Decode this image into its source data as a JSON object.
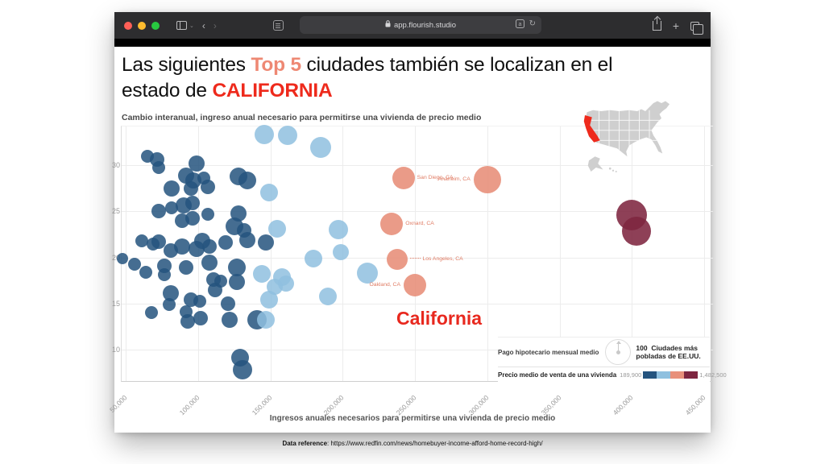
{
  "browser": {
    "url": "app.flourish.studio",
    "traffic_lights": {
      "close": "#ff5f57",
      "minimize": "#febc2e",
      "zoom": "#28c840"
    },
    "nav": {
      "back": "‹",
      "forward": "›",
      "reload": "↻",
      "plus": "+",
      "chevron": "⌄"
    }
  },
  "slide": {
    "title_parts": [
      {
        "text": "Las siguientes "
      },
      {
        "text": "Top 5",
        "class": "hl-salmon"
      },
      {
        "text": " ciudades también se localizan en el"
      },
      {
        "br": true
      },
      {
        "text": "estado de "
      },
      {
        "text": "CALIFORNIA",
        "class": "hl-red"
      }
    ],
    "caption_label": "Data reference",
    "caption_rest": ": https://www.redfin.com/news/homebuyer-income-afford-home-record-high/"
  },
  "chart_data": {
    "type": "scatter",
    "title": "Cambio interanual, ingreso anual necesario para permitirse una vivienda de precio medio",
    "xlabel": "Ingresos anuales necesarios para permitirse una vivienda de precio medio",
    "annotation": "California",
    "annotation_color": "#e8281e",
    "xlim": [
      46000,
      458000
    ],
    "ylim": [
      6.4,
      34.4
    ],
    "grid": true,
    "x_ticks": [
      50000,
      100000,
      150000,
      200000,
      250000,
      300000,
      350000,
      400000,
      450000
    ],
    "x_tick_labels": [
      "50,000",
      "100,000",
      "150,000",
      "200,000",
      "250,000",
      "300,000",
      "350,000",
      "400,000",
      "450,000"
    ],
    "y_ticks": [
      10,
      15,
      20,
      25,
      30
    ],
    "series": [
      {
        "name": "ciudades-precio-bajo",
        "color": "#24537e",
        "opacity": 0.85,
        "points": [
          [
            65000,
            31.0,
            8
          ],
          [
            72000,
            30.6,
            9
          ],
          [
            73000,
            29.7,
            8
          ],
          [
            99000,
            30.2,
            10
          ],
          [
            92000,
            28.9,
            10
          ],
          [
            97000,
            28.3,
            10
          ],
          [
            104000,
            28.6,
            8
          ],
          [
            82000,
            27.5,
            10
          ],
          [
            95000,
            27.5,
            9
          ],
          [
            107000,
            27.6,
            9
          ],
          [
            128000,
            28.8,
            11
          ],
          [
            134000,
            28.3,
            11
          ],
          [
            73000,
            25.0,
            9
          ],
          [
            82000,
            25.4,
            8
          ],
          [
            90000,
            25.6,
            10
          ],
          [
            96000,
            25.9,
            9
          ],
          [
            89000,
            24.0,
            9
          ],
          [
            96000,
            24.2,
            9
          ],
          [
            107000,
            24.7,
            8
          ],
          [
            128000,
            24.8,
            10
          ],
          [
            125000,
            23.4,
            11
          ],
          [
            132000,
            22.9,
            9
          ],
          [
            61000,
            21.8,
            8
          ],
          [
            69000,
            21.4,
            8
          ],
          [
            73000,
            21.7,
            9
          ],
          [
            81000,
            20.7,
            9
          ],
          [
            89000,
            21.2,
            10
          ],
          [
            99000,
            20.9,
            10
          ],
          [
            103000,
            21.8,
            10
          ],
          [
            108000,
            21.2,
            9
          ],
          [
            119000,
            21.6,
            9
          ],
          [
            134000,
            21.9,
            10
          ],
          [
            147000,
            21.6,
            10
          ],
          [
            48000,
            19.9,
            7
          ],
          [
            56000,
            19.3,
            8
          ],
          [
            64000,
            18.4,
            8
          ],
          [
            77000,
            19.1,
            9
          ],
          [
            77000,
            18.1,
            8
          ],
          [
            92000,
            18.9,
            9
          ],
          [
            108000,
            19.4,
            10
          ],
          [
            127000,
            18.9,
            11
          ],
          [
            127000,
            17.3,
            10
          ],
          [
            111000,
            17.6,
            9
          ],
          [
            112000,
            16.5,
            9
          ],
          [
            116000,
            17.4,
            8
          ],
          [
            81000,
            16.1,
            10
          ],
          [
            80000,
            14.9,
            8
          ],
          [
            68000,
            14.0,
            8
          ],
          [
            95000,
            15.4,
            9
          ],
          [
            101000,
            15.2,
            8
          ],
          [
            121000,
            15.0,
            9
          ],
          [
            92000,
            14.1,
            8
          ],
          [
            93000,
            13.1,
            9
          ],
          [
            102000,
            13.4,
            9
          ],
          [
            122000,
            13.2,
            10
          ],
          [
            141000,
            13.2,
            12
          ],
          [
            129000,
            9.1,
            11
          ],
          [
            131000,
            7.8,
            12
          ]
        ]
      },
      {
        "name": "ciudades-precio-medio",
        "color": "#8fc0df",
        "opacity": 0.85,
        "points": [
          [
            146000,
            33.3,
            12
          ],
          [
            162000,
            33.2,
            12
          ],
          [
            185000,
            31.9,
            13
          ],
          [
            149000,
            27.0,
            11
          ],
          [
            155000,
            23.1,
            11
          ],
          [
            197000,
            23.0,
            12
          ],
          [
            199000,
            20.6,
            10
          ],
          [
            180000,
            19.9,
            11
          ],
          [
            158000,
            17.9,
            11
          ],
          [
            161000,
            17.2,
            10
          ],
          [
            153000,
            16.8,
            10
          ],
          [
            190000,
            15.8,
            11
          ],
          [
            217000,
            18.3,
            13
          ],
          [
            144000,
            18.2,
            11
          ],
          [
            149000,
            15.4,
            11
          ],
          [
            147000,
            13.2,
            11
          ]
        ]
      },
      {
        "name": "ciudades-precio-muy-alto",
        "color": "#7e2640",
        "opacity": 0.88,
        "points": [
          [
            400000,
            24.6,
            19
          ],
          [
            403000,
            22.8,
            18
          ]
        ]
      }
    ],
    "cities": {
      "color": "#e8907b",
      "opacity": 0.9,
      "items": [
        {
          "label": "San Diego, CA",
          "x": 242000,
          "y": 28.6,
          "r": 14,
          "side": "right",
          "leader": false
        },
        {
          "label": "Anaheim, CA",
          "x": 300000,
          "y": 28.4,
          "r": 17,
          "side": "left",
          "leader": false
        },
        {
          "label": "Oxnard, CA",
          "x": 234000,
          "y": 23.6,
          "r": 14,
          "side": "right",
          "leader": false
        },
        {
          "label": "Los Angeles, CA",
          "x": 238000,
          "y": 19.8,
          "r": 13,
          "side": "right",
          "leader": true
        },
        {
          "label": "Oakland, CA",
          "x": 250000,
          "y": 17.0,
          "r": 14,
          "side": "left",
          "leader": false
        }
      ]
    },
    "legend": {
      "size_label": "Pago hipotecario mensual medio",
      "size_value": "100",
      "size_desc": "Ciudades más pobladas de EE.UU.",
      "color_label": "Precio medio de venta de una vivienda",
      "color_min": "189,900",
      "color_max": "1,482,500",
      "swatches": [
        "#24537e",
        "#8fc0df",
        "#e8907b",
        "#7e2640"
      ]
    },
    "map": {
      "name": "EE.UU.",
      "highlight": "California",
      "base_color": "#cfcfcf",
      "highlight_color": "#ee2a1c"
    }
  }
}
